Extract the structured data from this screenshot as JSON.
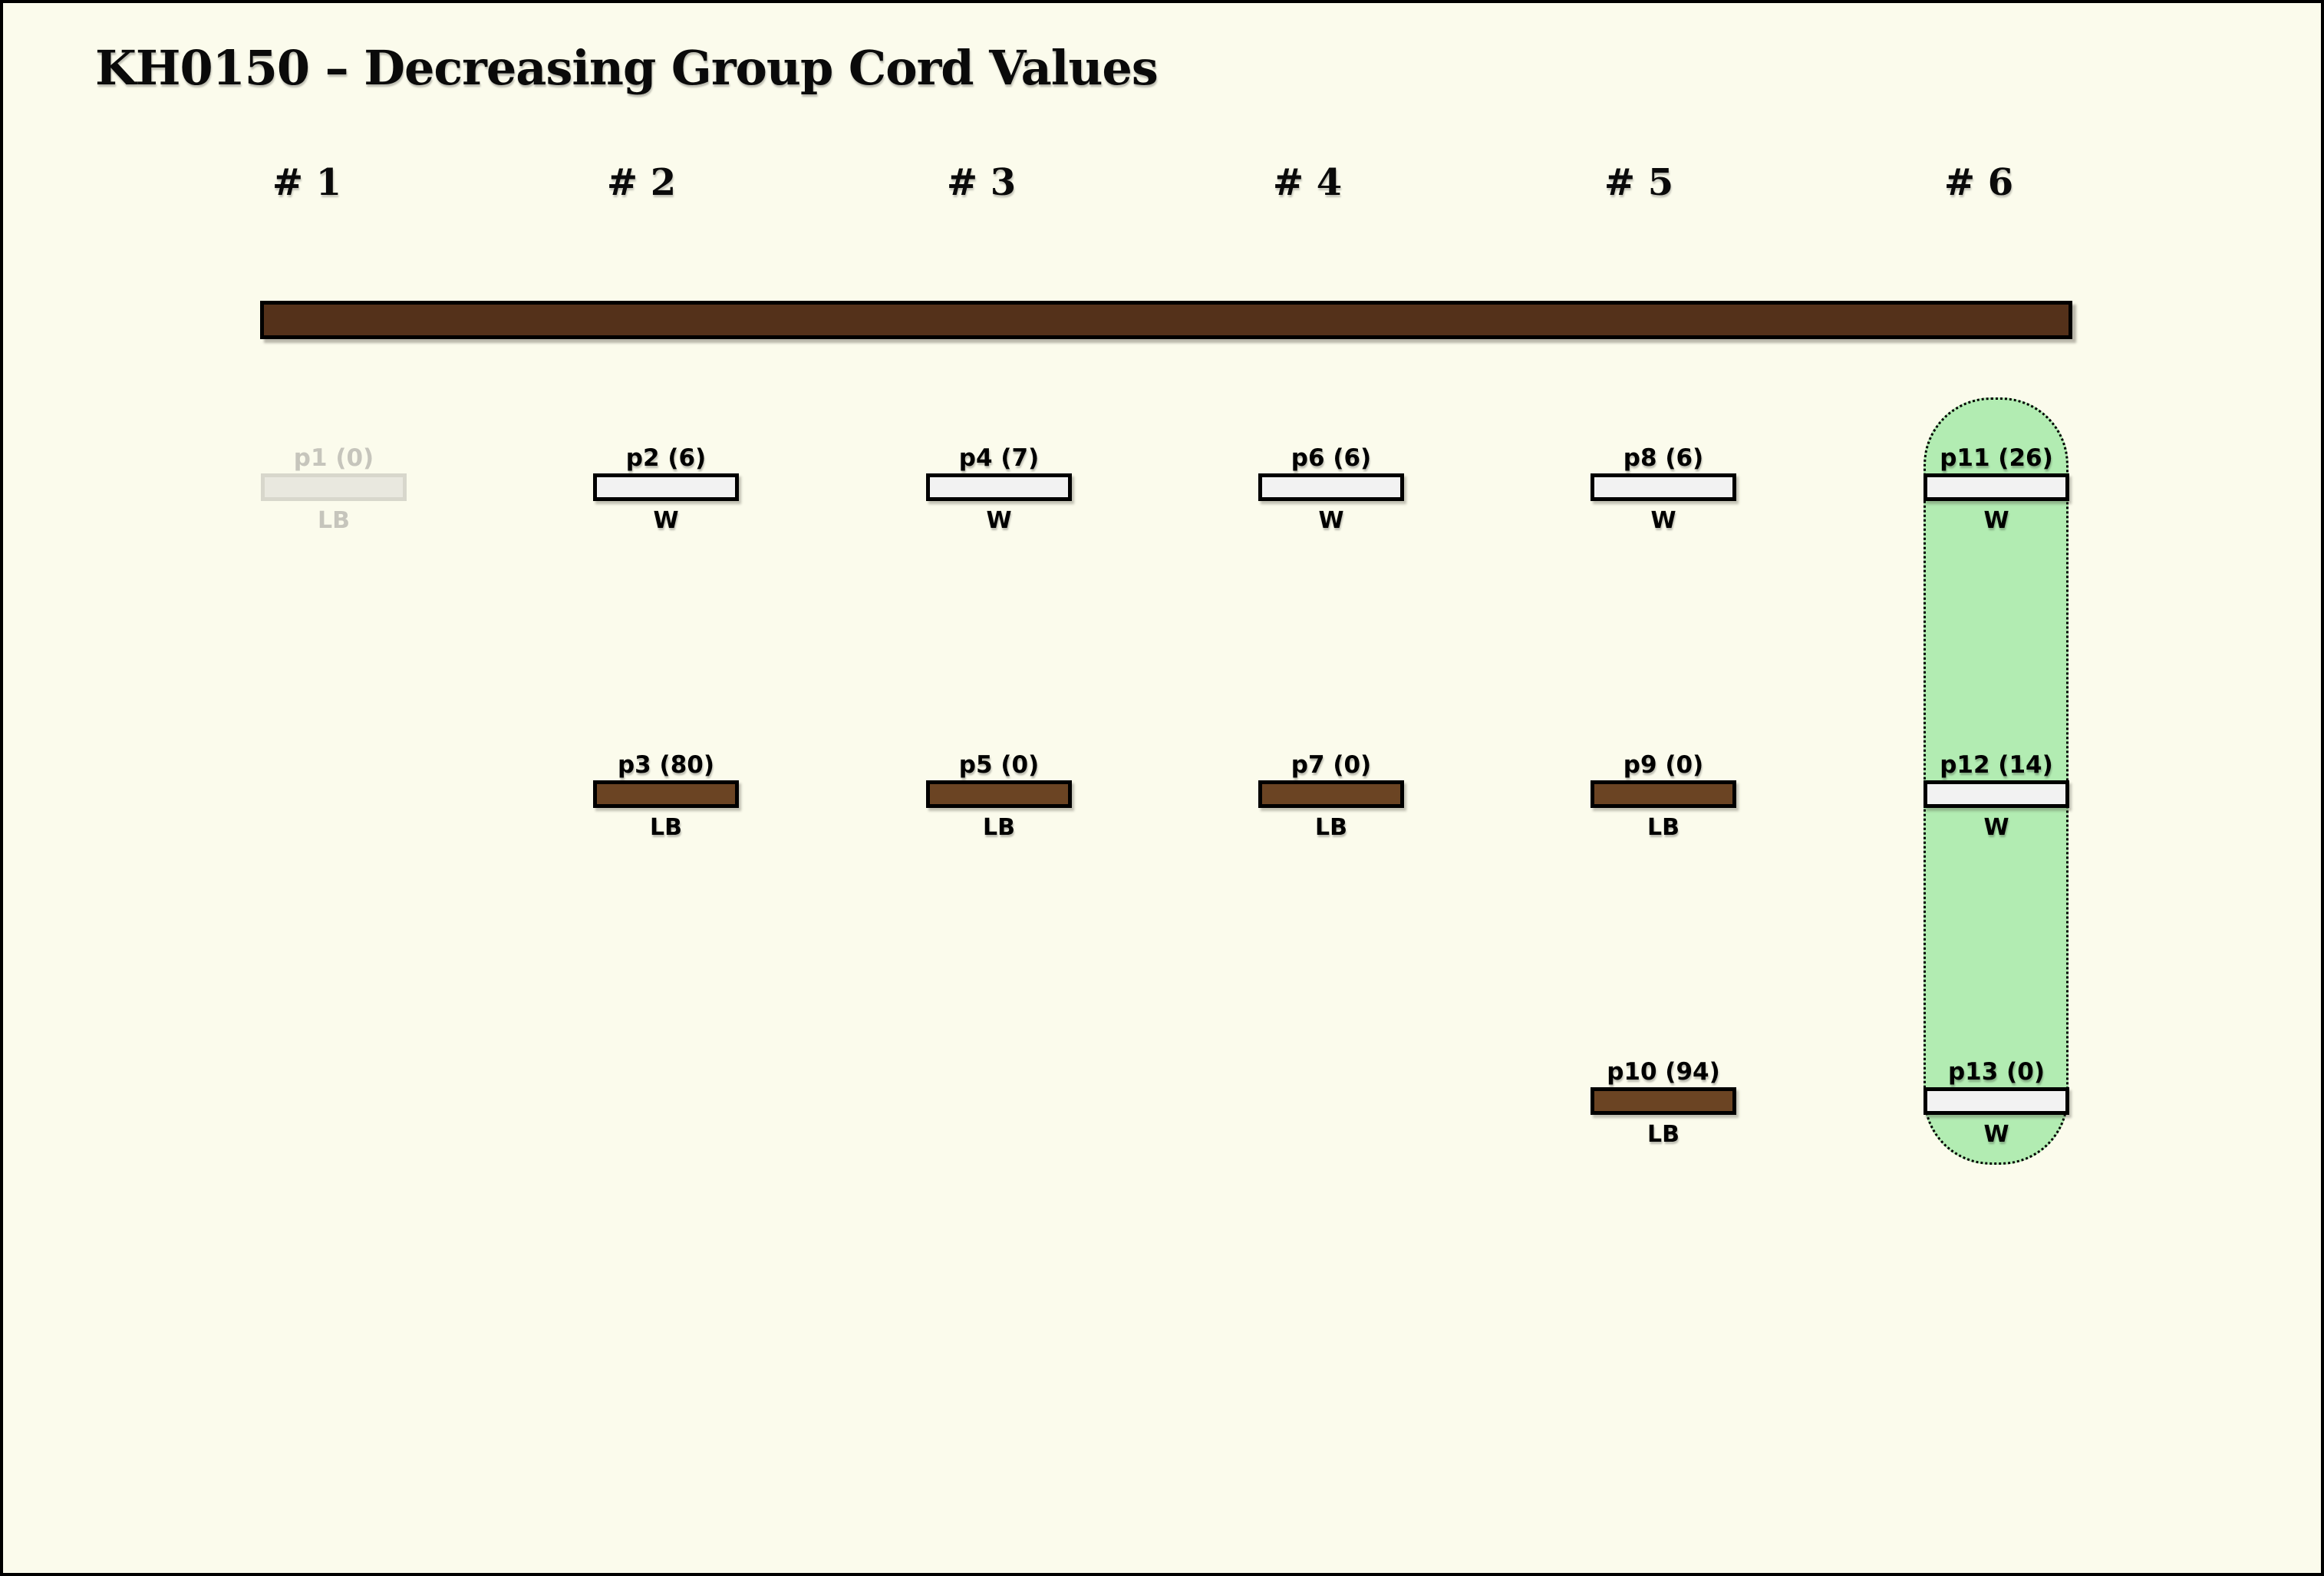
{
  "title": "KH0150 – Decreasing Group Cord Values",
  "columns": [
    {
      "label": "# 1"
    },
    {
      "label": "# 2"
    },
    {
      "label": "# 3"
    },
    {
      "label": "# 4"
    },
    {
      "label": "# 5"
    },
    {
      "label": "# 6"
    }
  ],
  "top_bar": {
    "description": "group cord bar spanning all columns",
    "color": "#54311A"
  },
  "group_highlight": {
    "column": "# 6",
    "color": "#B2ECB2",
    "border_style": "dotted"
  },
  "nodes": [
    {
      "id": "p1",
      "label": "p1 (0)",
      "sublabel": "LB",
      "column": "# 1",
      "row": 1,
      "faded": true,
      "highlighted": false
    },
    {
      "id": "p2",
      "label": "p2 (6)",
      "sublabel": "W",
      "column": "# 2",
      "row": 1,
      "faded": false,
      "highlighted": false
    },
    {
      "id": "p3",
      "label": "p3 (80)",
      "sublabel": "LB",
      "column": "# 2",
      "row": 2,
      "faded": false,
      "highlighted": false
    },
    {
      "id": "p4",
      "label": "p4 (7)",
      "sublabel": "W",
      "column": "# 3",
      "row": 1,
      "faded": false,
      "highlighted": false
    },
    {
      "id": "p5",
      "label": "p5 (0)",
      "sublabel": "LB",
      "column": "# 3",
      "row": 2,
      "faded": false,
      "highlighted": false
    },
    {
      "id": "p6",
      "label": "p6 (6)",
      "sublabel": "W",
      "column": "# 4",
      "row": 1,
      "faded": false,
      "highlighted": false
    },
    {
      "id": "p7",
      "label": "p7 (0)",
      "sublabel": "LB",
      "column": "# 4",
      "row": 2,
      "faded": false,
      "highlighted": false
    },
    {
      "id": "p8",
      "label": "p8 (6)",
      "sublabel": "W",
      "column": "# 5",
      "row": 1,
      "faded": false,
      "highlighted": false
    },
    {
      "id": "p9",
      "label": "p9 (0)",
      "sublabel": "LB",
      "column": "# 5",
      "row": 2,
      "faded": false,
      "highlighted": false
    },
    {
      "id": "p10",
      "label": "p10 (94)",
      "sublabel": "LB",
      "column": "# 5",
      "row": 3,
      "faded": false,
      "highlighted": false
    },
    {
      "id": "p11",
      "label": "p11 (26)",
      "sublabel": "W",
      "column": "# 6",
      "row": 1,
      "faded": false,
      "highlighted": true
    },
    {
      "id": "p12",
      "label": "p12 (14)",
      "sublabel": "W",
      "column": "# 6",
      "row": 2,
      "faded": false,
      "highlighted": true
    },
    {
      "id": "p13",
      "label": "p13 (0)",
      "sublabel": "W",
      "column": "# 6",
      "row": 3,
      "faded": false,
      "highlighted": true
    }
  ],
  "colors": {
    "background": "#FBFBEC",
    "frame": "#000000",
    "cord_bar_brown": "#54311A",
    "lb_bar_brown": "#6B4423",
    "w_bar_gray": "#F2F2F2",
    "group_green": "#B2ECB2",
    "faded_gray": "#C6C5BC"
  }
}
